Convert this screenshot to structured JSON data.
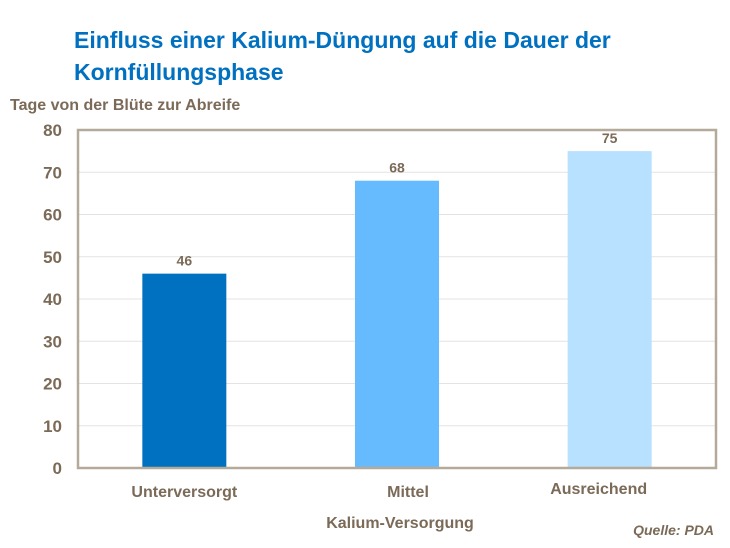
{
  "chart_data": {
    "type": "bar",
    "title": "Einfluss einer Kalium-Düngung auf die Dauer der Kornfüllungsphase",
    "ylabel": "Tage von der Blüte zur Abreife",
    "xlabel": "Kalium-Versorgung",
    "categories": [
      "Unterversorgt",
      "Mittel",
      "Ausreichend"
    ],
    "values": [
      46,
      68,
      75
    ],
    "data_labels": [
      "46",
      "68",
      "75"
    ],
    "colors": [
      "#0070C0",
      "#66BBFF",
      "#B8E0FF"
    ],
    "ylim": [
      0,
      80
    ],
    "yticks": [
      0,
      10,
      20,
      30,
      40,
      50,
      60,
      70,
      80
    ],
    "grid": true,
    "legend": "none",
    "source": "Quelle: PDA"
  }
}
